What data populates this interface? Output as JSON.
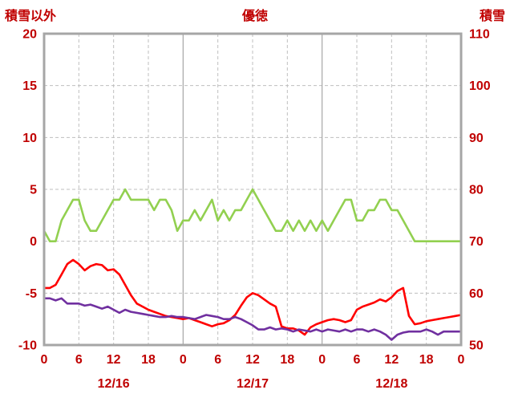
{
  "chart_data": {
    "type": "line",
    "title": "優徳",
    "left_axis": {
      "label": "積雪以外",
      "min": -10,
      "max": 20,
      "ticks": [
        20,
        15,
        10,
        5,
        0,
        -5,
        -10
      ]
    },
    "right_axis": {
      "label": "積雪",
      "min": 50,
      "max": 110,
      "ticks": [
        110,
        100,
        90,
        80,
        70,
        60,
        50
      ]
    },
    "x_axis": {
      "hours_total": 72,
      "tick_interval": 6,
      "tick_labels": [
        "0",
        "6",
        "12",
        "18",
        "0",
        "6",
        "12",
        "18",
        "0",
        "6",
        "12",
        "18",
        "0"
      ],
      "day_labels": [
        {
          "text": "12/16",
          "hour": 12
        },
        {
          "text": "12/17",
          "hour": 36
        },
        {
          "text": "12/18",
          "hour": 60
        }
      ],
      "day_boundaries": [
        24,
        48
      ]
    },
    "grid": true,
    "legend": "none",
    "series": [
      {
        "name": "series-green",
        "axis": "right",
        "color": "#92d050",
        "values": [
          72,
          70,
          70,
          74,
          76,
          78,
          78,
          74,
          72,
          72,
          74,
          76,
          78,
          78,
          80,
          78,
          78,
          78,
          78,
          76,
          78,
          78,
          76,
          72,
          74,
          74,
          76,
          74,
          76,
          78,
          74,
          76,
          74,
          76,
          76,
          78,
          80,
          78,
          76,
          74,
          72,
          72,
          74,
          72,
          74,
          72,
          74,
          72,
          74,
          72,
          74,
          76,
          78,
          78,
          74,
          74,
          76,
          76,
          78,
          78,
          76,
          76,
          74,
          72,
          70,
          70,
          70,
          70,
          70,
          70,
          70,
          70,
          70
        ]
      },
      {
        "name": "series-red",
        "axis": "left",
        "color": "#ff0000",
        "values": [
          -4.5,
          -4.5,
          -4.2,
          -3.2,
          -2.2,
          -1.8,
          -2.2,
          -2.8,
          -2.4,
          -2.2,
          -2.3,
          -2.8,
          -2.7,
          -3.2,
          -4.2,
          -5.2,
          -6,
          -6.3,
          -6.6,
          -6.8,
          -7,
          -7.2,
          -7.3,
          -7.4,
          -7.5,
          -7.4,
          -7.6,
          -7.8,
          -8,
          -8.2,
          -8,
          -7.9,
          -7.6,
          -7.1,
          -6.2,
          -5.4,
          -5,
          -5.2,
          -5.6,
          -6,
          -6.3,
          -8.2,
          -8.4,
          -8.4,
          -8.6,
          -9,
          -8.3,
          -8,
          -7.8,
          -7.6,
          -7.5,
          -7.6,
          -7.8,
          -7.6,
          -6.6,
          -6.3,
          -6.1,
          -5.9,
          -5.6,
          -5.8,
          -5.4,
          -4.8,
          -4.5,
          -7.2,
          -8,
          -7.9,
          -7.7,
          -7.6,
          -7.5,
          -7.4,
          -7.3,
          -7.2,
          -7.1
        ]
      },
      {
        "name": "series-purple",
        "axis": "left",
        "color": "#7030a0",
        "values": [
          -5.5,
          -5.5,
          -5.7,
          -5.5,
          -6,
          -6,
          -6,
          -6.2,
          -6.1,
          -6.3,
          -6.5,
          -6.3,
          -6.6,
          -6.9,
          -6.6,
          -6.8,
          -6.9,
          -7,
          -7.1,
          -7.2,
          -7.3,
          -7.3,
          -7.2,
          -7.3,
          -7.3,
          -7.4,
          -7.5,
          -7.3,
          -7.1,
          -7.2,
          -7.3,
          -7.5,
          -7.5,
          -7.3,
          -7.5,
          -7.8,
          -8.1,
          -8.5,
          -8.5,
          -8.3,
          -8.5,
          -8.4,
          -8.5,
          -8.7,
          -8.5,
          -8.6,
          -8.7,
          -8.5,
          -8.7,
          -8.5,
          -8.6,
          -8.7,
          -8.5,
          -8.7,
          -8.5,
          -8.5,
          -8.7,
          -8.5,
          -8.7,
          -9,
          -9.5,
          -9,
          -8.8,
          -8.7,
          -8.7,
          -8.7,
          -8.5,
          -8.7,
          -9,
          -8.7,
          -8.7,
          -8.7,
          -8.7
        ]
      }
    ],
    "colors": {
      "text": "#c00000",
      "gridline": "#bfbfbf",
      "border": "#a6a6a6",
      "background": "#ffffff"
    }
  }
}
